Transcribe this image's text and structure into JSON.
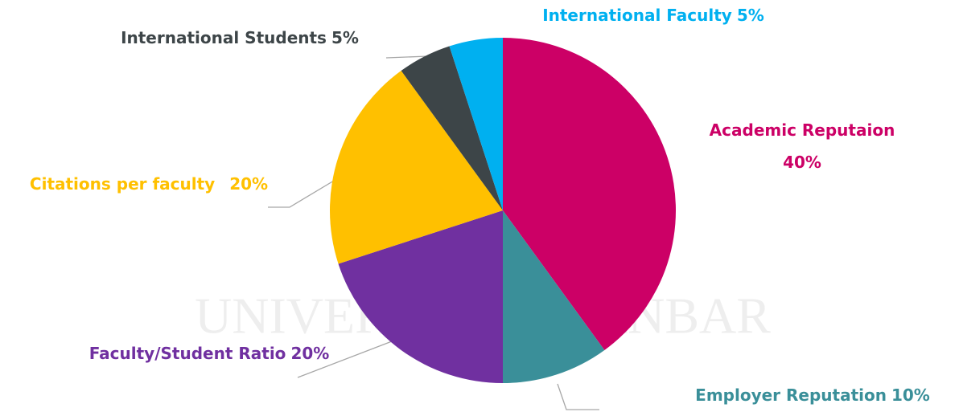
{
  "chart_data": {
    "type": "pie",
    "categories": [
      "Academic Reputaion",
      "Employer Reputation",
      "Faculty/Student Ratio",
      "Citations per faculty",
      "International Students",
      "International Faculty"
    ],
    "values": [
      40,
      10,
      20,
      20,
      5,
      5
    ],
    "value_labels": [
      "40%",
      "10%",
      "20%",
      "20%",
      "5%",
      "5%"
    ],
    "colors": [
      "#cc0066",
      "#3a8f99",
      "#7030a0",
      "#ffc000",
      "#3d4548",
      "#00b0f0"
    ]
  }
}
